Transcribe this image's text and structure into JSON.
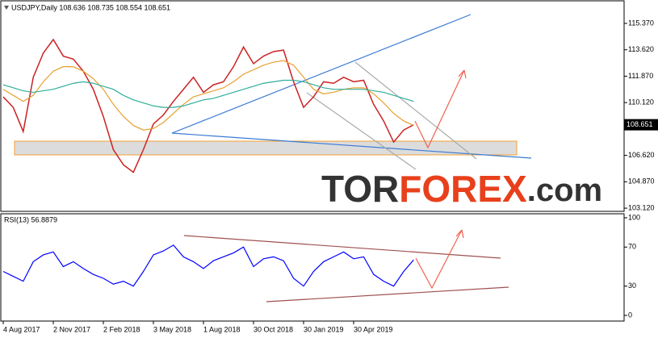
{
  "chart_data": [
    {
      "type": "line",
      "title": "USDJPY,Daily 108.636 108.735 108.554 108.651",
      "ylim": [
        102.91,
        116.92
      ],
      "yticks": [
        {
          "value": 115.37,
          "label": "115.370"
        },
        {
          "value": 113.62,
          "label": "113.620"
        },
        {
          "value": 111.87,
          "label": "111.870"
        },
        {
          "value": 110.12,
          "label": "110.120"
        },
        {
          "value": 106.62,
          "label": "106.620"
        },
        {
          "value": 104.87,
          "label": "104.870"
        },
        {
          "value": 103.12,
          "label": "103.120"
        }
      ],
      "price_label": 108.651,
      "series": [
        {
          "color": "#cc2222",
          "values": [
            110.5,
            109.8,
            108.2,
            111.8,
            113.4,
            114.3,
            113.2,
            113.0,
            112.2,
            111.0,
            109.2,
            107.0,
            106.0,
            105.5,
            107.0,
            108.7,
            109.3,
            110.2,
            111.0,
            111.8,
            110.8,
            111.3,
            111.5,
            112.5,
            113.8,
            112.7,
            113.2,
            113.5,
            113.6,
            111.5,
            109.8,
            110.5,
            111.5,
            111.4,
            111.8,
            111.5,
            111.6,
            110.0,
            108.9,
            107.5,
            108.3,
            108.65
          ]
        },
        {
          "color": "#e8a030",
          "values": [
            111.0,
            110.6,
            110.2,
            110.6,
            111.5,
            112.2,
            112.5,
            112.5,
            112.2,
            111.7,
            111.0,
            110.0,
            109.2,
            108.6,
            108.3,
            108.4,
            108.8,
            109.4,
            110.0,
            110.5,
            110.7,
            110.9,
            111.1,
            111.5,
            112.0,
            112.3,
            112.6,
            112.8,
            112.9,
            112.6,
            111.8,
            111.0,
            110.7,
            110.8,
            111.0,
            111.1,
            111.1,
            110.7,
            110.1,
            109.4,
            108.9,
            108.6
          ]
        },
        {
          "color": "#2fae9a",
          "values": [
            111.3,
            111.1,
            110.9,
            110.8,
            110.9,
            111.0,
            111.2,
            111.4,
            111.5,
            111.4,
            111.2,
            111.0,
            110.6,
            110.3,
            110.1,
            109.9,
            109.8,
            109.8,
            109.9,
            110.1,
            110.3,
            110.4,
            110.6,
            110.8,
            111.0,
            111.2,
            111.4,
            111.5,
            111.6,
            111.6,
            111.5,
            111.3,
            111.1,
            111.0,
            111.0,
            111.0,
            111.0,
            110.9,
            110.8,
            110.6,
            110.4,
            110.2
          ]
        }
      ]
    },
    {
      "type": "line",
      "title": "RSI(13) 56.8879",
      "ylim": [
        -5.8,
        104.1
      ],
      "yticks": [
        100,
        70,
        30,
        0
      ],
      "categories": [
        "4 Aug 2017",
        null,
        null,
        null,
        null,
        "2 Nov 2017",
        null,
        null,
        null,
        null,
        "2 Feb 2018",
        null,
        null,
        null,
        null,
        "3 May 2018",
        null,
        null,
        null,
        null,
        "1 Aug 2018",
        null,
        null,
        null,
        null,
        "30 Oct 2018",
        null,
        null,
        null,
        null,
        "30 Jan 2019",
        null,
        null,
        null,
        null,
        "30 Apr 2019",
        null,
        null,
        null,
        null,
        null,
        null
      ],
      "series": [
        {
          "color": "#0000ff",
          "values": [
            45,
            40,
            35,
            55,
            62,
            65,
            50,
            55,
            48,
            42,
            38,
            32,
            35,
            30,
            45,
            62,
            66,
            72,
            60,
            55,
            48,
            56,
            60,
            64,
            70,
            50,
            58,
            60,
            56,
            38,
            30,
            45,
            55,
            60,
            65,
            58,
            60,
            42,
            35,
            30,
            45,
            56.9
          ]
        }
      ]
    }
  ],
  "logo": {
    "parts": [
      "TOR",
      "FOREX",
      ".com"
    ]
  }
}
